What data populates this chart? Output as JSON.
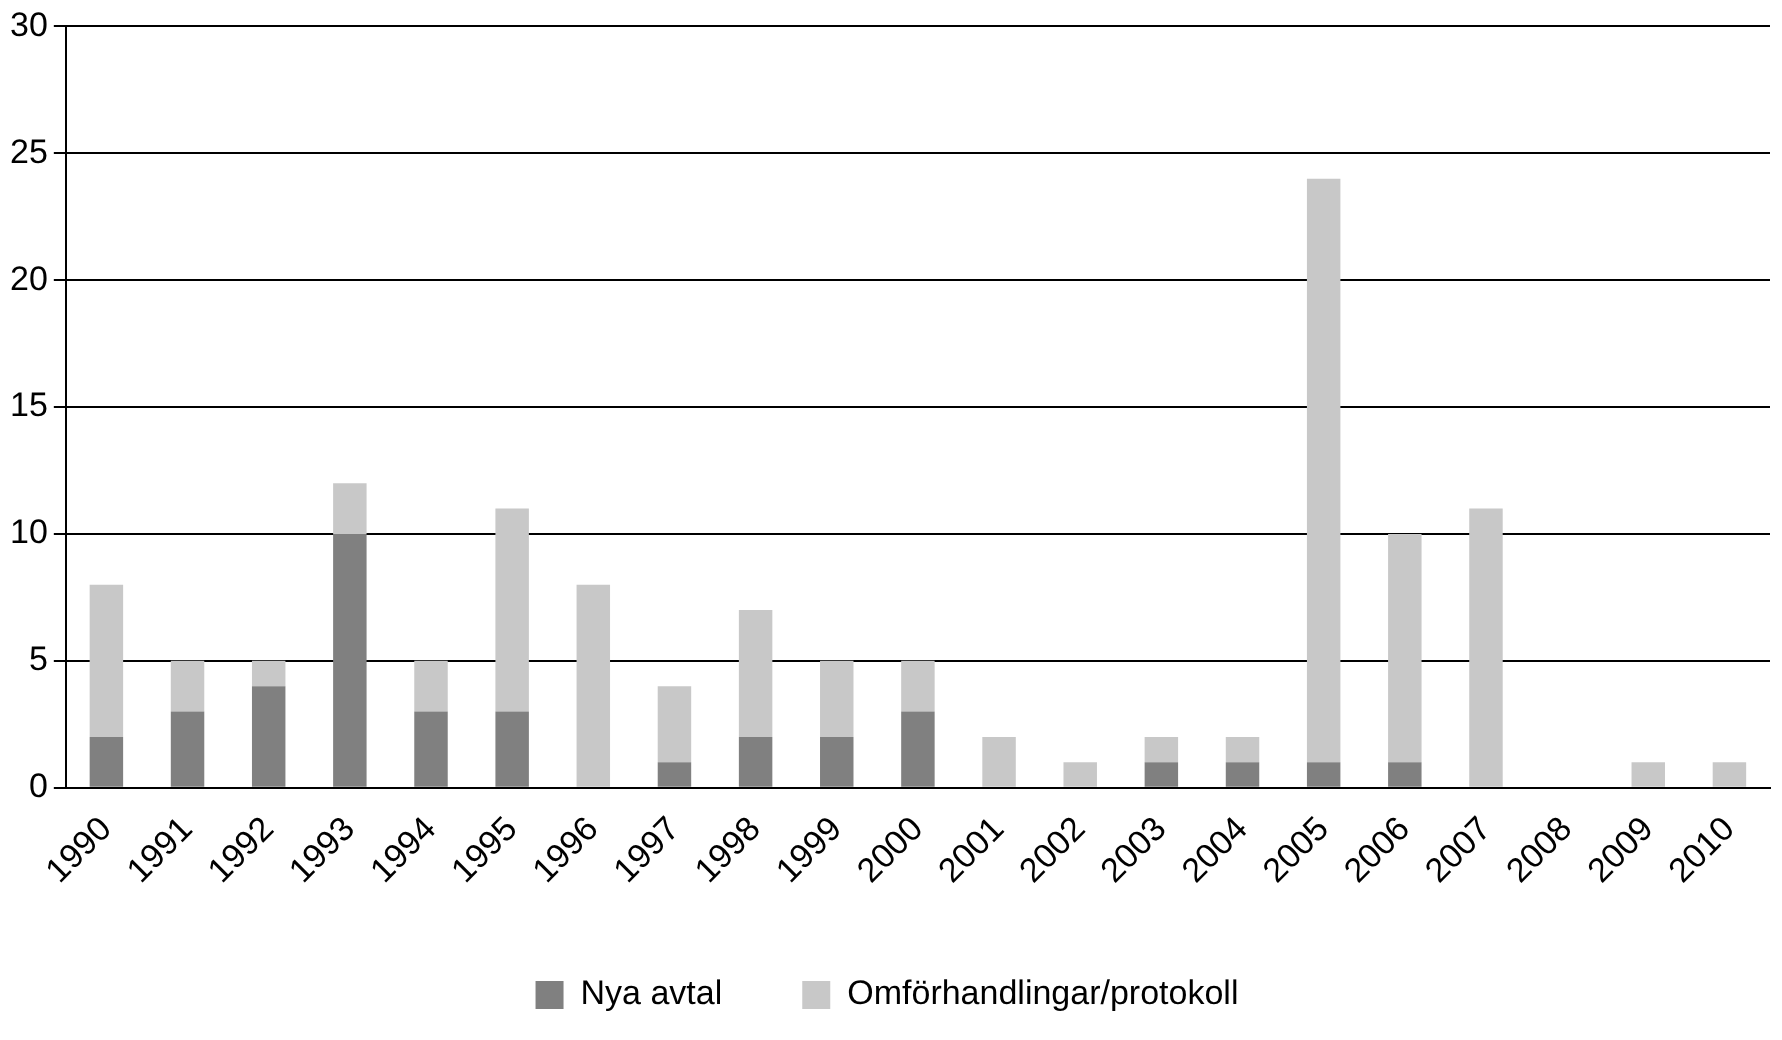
{
  "chart_data": {
    "type": "bar",
    "stacked": true,
    "categories": [
      "1990",
      "1991",
      "1992",
      "1993",
      "1994",
      "1995",
      "1996",
      "1997",
      "1998",
      "1999",
      "2000",
      "2001",
      "2002",
      "2003",
      "2004",
      "2005",
      "2006",
      "2007",
      "2008",
      "2009",
      "2010"
    ],
    "series": [
      {
        "name": "Nya avtal",
        "color": "#808080",
        "values": [
          2,
          3,
          4,
          10,
          3,
          3,
          0,
          1,
          2,
          2,
          3,
          0,
          0,
          1,
          1,
          1,
          1,
          0,
          0,
          0,
          0
        ]
      },
      {
        "name": "Omförhandlingar/protokoll",
        "color": "#c8c8c8",
        "values": [
          6,
          2,
          1,
          2,
          2,
          8,
          8,
          3,
          5,
          3,
          2,
          2,
          1,
          1,
          1,
          23,
          9,
          11,
          0,
          1,
          1
        ]
      }
    ],
    "ylim": [
      0,
      30
    ],
    "yticks": [
      0,
      5,
      10,
      15,
      20,
      25,
      30
    ],
    "grid": "y",
    "legend": "bottom"
  }
}
